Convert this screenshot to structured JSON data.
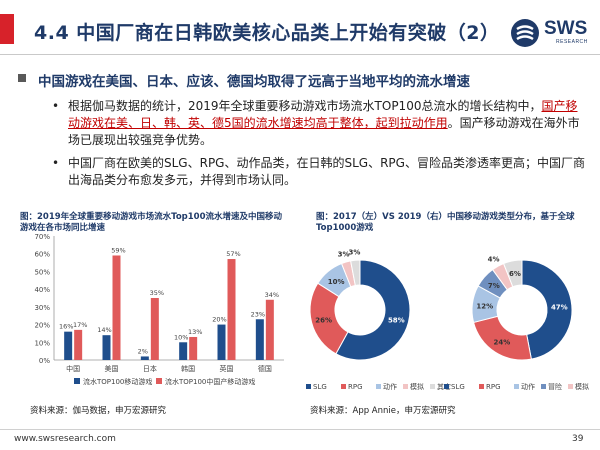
{
  "header": {
    "title": "4.4 中国厂商在日韩欧美核心品类上开始有突破（2）",
    "logo_text": "SWS",
    "logo_sub": "RESEARCH"
  },
  "headline": "中国游戏在美国、日本、应该、德国均取得了远高于当地平均的流水增速",
  "bullets": [
    {
      "pre": "根据伽马数据的统计，2019年全球重要移动游戏市场流水TOP100总流水的增长结构中，",
      "highlight": "国产移动游戏在美、日、韩、英、德5国的流水增速均高于整体，起到拉动作用",
      "post": "。国产移动游戏在海外市场已展现出较强竞争优势。"
    },
    {
      "pre": "中国厂商在欧美的SLG、RPG、动作品类，在日韩的SLG、RPG、冒险品类渗透率更高；中国厂商出海品类分布愈发多元，并得到市场认同。",
      "highlight": "",
      "post": ""
    }
  ],
  "bar_chart_title": "图：2019年全球重要移动游戏市场流水Top100流水增速及中国移动游戏在各市场同比增速",
  "bar_chart_source": "资料来源：伽马数据，申万宏源研究",
  "pie_chart_title": "图：2017（左）VS 2019（右）中国移动游戏类型分布，基于全球Top1000游戏",
  "pie_chart_source": "资料来源：App Annie，申万宏源研究",
  "footer": {
    "url": "www.swsresearch.com",
    "page": "39"
  },
  "colors": {
    "navy": "#1f3a68",
    "red": "#d7222a",
    "bar_blue": "#1f4e8c",
    "bar_red": "#e05a5a"
  },
  "chart_data": [
    {
      "type": "bar",
      "categories": [
        "中国",
        "美国",
        "日本",
        "韩国",
        "英国",
        "德国"
      ],
      "series": [
        {
          "name": "流水TOP100移动游戏",
          "values": [
            16,
            14,
            2,
            10,
            20,
            23
          ],
          "labels": [
            "16%",
            "14%",
            "2%",
            "10%",
            "20%",
            "23%"
          ]
        },
        {
          "name": "流水TOP100中国产移动游戏",
          "values": [
            17,
            59,
            35,
            13,
            57,
            34
          ],
          "labels": [
            "17%",
            "59%",
            "35%",
            "13%",
            "57%",
            "34%"
          ]
        }
      ],
      "ylim": [
        0,
        70
      ],
      "yticks": [
        "0%",
        "10%",
        "20%",
        "30%",
        "40%",
        "50%",
        "60%",
        "70%"
      ],
      "legend": "bottom",
      "grid": false
    },
    {
      "type": "pie",
      "chart": "donut",
      "categories": [
        "SLG",
        "RPG",
        "动作",
        "模拟",
        "其它"
      ],
      "values": [
        58,
        26,
        10,
        3,
        3
      ],
      "labels": [
        "58%",
        "26%",
        "10%",
        "3%",
        "3%"
      ],
      "colors": [
        "#1f4e8c",
        "#e05a5a",
        "#a9c4e4",
        "#f2c4c4",
        "#dcdcdc"
      ],
      "legend": "bottom"
    },
    {
      "type": "pie",
      "chart": "donut",
      "categories": [
        "SLG",
        "RPG",
        "动作",
        "冒险",
        "模拟",
        "其它"
      ],
      "values": [
        47,
        24,
        12,
        7,
        4,
        6
      ],
      "labels": [
        "47%",
        "24%",
        "12%",
        "7%",
        "4%",
        "6%"
      ],
      "colors": [
        "#1f4e8c",
        "#e05a5a",
        "#a9c4e4",
        "#6f8fbf",
        "#f2c4c4",
        "#dcdcdc"
      ],
      "legend": "bottom"
    }
  ]
}
